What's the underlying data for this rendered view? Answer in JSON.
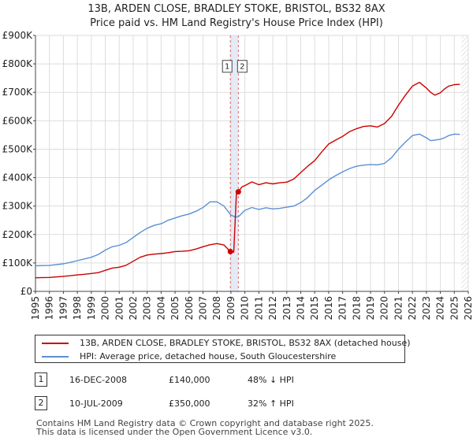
{
  "chart_data": {
    "type": "line",
    "title": "13B, ARDEN CLOSE, BRADLEY STOKE, BRISTOL, BS32 8AX",
    "subtitle": "Price paid vs. HM Land Registry's House Price Index (HPI)",
    "xlabel": "",
    "ylabel": "",
    "xlim": [
      1995,
      2026
    ],
    "ylim": [
      0,
      900000
    ],
    "x_ticks": [
      "1995",
      "1996",
      "1997",
      "1998",
      "1999",
      "2000",
      "2001",
      "2002",
      "2003",
      "2004",
      "2005",
      "2006",
      "2007",
      "2008",
      "2009",
      "2010",
      "2011",
      "2012",
      "2013",
      "2014",
      "2015",
      "2016",
      "2017",
      "2018",
      "2019",
      "2020",
      "2021",
      "2022",
      "2023",
      "2024",
      "2025",
      "2026"
    ],
    "y_ticks": [
      {
        "value": 0,
        "label": "£0"
      },
      {
        "value": 100000,
        "label": "£100K"
      },
      {
        "value": 200000,
        "label": "£200K"
      },
      {
        "value": 300000,
        "label": "£300K"
      },
      {
        "value": 400000,
        "label": "£400K"
      },
      {
        "value": 500000,
        "label": "£500K"
      },
      {
        "value": 600000,
        "label": "£600K"
      },
      {
        "value": 700000,
        "label": "£700K"
      },
      {
        "value": 800000,
        "label": "£800K"
      },
      {
        "value": 900000,
        "label": "£900K"
      }
    ],
    "grid": true,
    "shaded_region": {
      "from": 2008.96,
      "to": 2009.53
    },
    "future_hatch_from": 2025.5,
    "series": [
      {
        "name": "13B, ARDEN CLOSE, BRADLEY STOKE, BRISTOL, BS32 8AX (detached house)",
        "color": "#cc0000",
        "x": [
          1995.0,
          1996.0,
          1997.0,
          1997.5,
          1998.0,
          1998.5,
          1999.0,
          1999.5,
          2000.0,
          2000.5,
          2001.0,
          2001.5,
          2002.0,
          2002.5,
          2003.0,
          2003.5,
          2004.0,
          2004.5,
          2005.0,
          2005.5,
          2006.0,
          2006.5,
          2007.0,
          2007.5,
          2008.0,
          2008.5,
          2008.96,
          2009.2,
          2009.4,
          2009.53,
          2009.8,
          2010.0,
          2010.5,
          2011.0,
          2011.5,
          2012.0,
          2012.5,
          2013.0,
          2013.5,
          2014.0,
          2014.5,
          2015.0,
          2015.5,
          2016.0,
          2016.5,
          2017.0,
          2017.5,
          2018.0,
          2018.5,
          2019.0,
          2019.5,
          2020.0,
          2020.5,
          2021.0,
          2021.5,
          2022.0,
          2022.5,
          2023.0,
          2023.3,
          2023.6,
          2024.0,
          2024.3,
          2024.6,
          2025.0,
          2025.4
        ],
        "values": [
          48000,
          49000,
          53000,
          55000,
          58000,
          60000,
          63000,
          66000,
          74000,
          82000,
          85000,
          92000,
          106000,
          120000,
          128000,
          131000,
          133000,
          136000,
          140000,
          141000,
          143000,
          149000,
          157000,
          164000,
          168000,
          163000,
          140000,
          138000,
          350000,
          350000,
          368000,
          372000,
          385000,
          375000,
          382000,
          378000,
          382000,
          384000,
          395000,
          418000,
          440000,
          460000,
          490000,
          518000,
          532000,
          545000,
          562000,
          572000,
          580000,
          582000,
          578000,
          590000,
          615000,
          655000,
          690000,
          722000,
          735000,
          715000,
          700000,
          690000,
          698000,
          712000,
          722000,
          727000,
          728000
        ]
      },
      {
        "name": "HPI: Average price, detached house, South Gloucestershire",
        "color": "#5b8fd4",
        "x": [
          1995.0,
          1996.0,
          1997.0,
          1997.5,
          1998.0,
          1998.5,
          1999.0,
          1999.5,
          2000.0,
          2000.5,
          2001.0,
          2001.5,
          2002.0,
          2002.5,
          2003.0,
          2003.5,
          2004.0,
          2004.5,
          2005.0,
          2005.5,
          2006.0,
          2006.5,
          2007.0,
          2007.5,
          2008.0,
          2008.5,
          2009.0,
          2009.3,
          2009.53,
          2010.0,
          2010.5,
          2011.0,
          2011.5,
          2012.0,
          2012.5,
          2013.0,
          2013.5,
          2014.0,
          2014.5,
          2015.0,
          2015.5,
          2016.0,
          2016.5,
          2017.0,
          2017.5,
          2018.0,
          2018.5,
          2019.0,
          2019.5,
          2020.0,
          2020.5,
          2021.0,
          2021.5,
          2022.0,
          2022.5,
          2023.0,
          2023.3,
          2023.6,
          2024.0,
          2024.3,
          2024.6,
          2025.0,
          2025.4
        ],
        "values": [
          90000,
          91000,
          97000,
          102000,
          108000,
          114000,
          120000,
          130000,
          145000,
          157000,
          162000,
          172000,
          190000,
          207000,
          222000,
          232000,
          238000,
          250000,
          258000,
          266000,
          272000,
          282000,
          295000,
          315000,
          315000,
          300000,
          268000,
          262000,
          262000,
          285000,
          295000,
          288000,
          294000,
          290000,
          292000,
          296000,
          300000,
          312000,
          330000,
          355000,
          373000,
          392000,
          407000,
          420000,
          432000,
          440000,
          444000,
          446000,
          445000,
          450000,
          470000,
          500000,
          525000,
          548000,
          553000,
          540000,
          530000,
          532000,
          535000,
          540000,
          548000,
          553000,
          552000
        ]
      }
    ],
    "markers": [
      {
        "label": "1",
        "x": 2008.96,
        "value": 140000
      },
      {
        "label": "2",
        "x": 2009.53,
        "value": 350000
      }
    ]
  },
  "legend": [
    {
      "label": "13B, ARDEN CLOSE, BRADLEY STOKE, BRISTOL, BS32 8AX (detached house)",
      "color": "#cc0000"
    },
    {
      "label": "HPI: Average price, detached house, South Gloucestershire",
      "color": "#5b8fd4"
    }
  ],
  "transactions": [
    {
      "num": "1",
      "date": "16-DEC-2008",
      "price": "£140,000",
      "hpi": "48% ↓ HPI"
    },
    {
      "num": "2",
      "date": "10-JUL-2009",
      "price": "£350,000",
      "hpi": "32% ↑ HPI"
    }
  ],
  "footer": {
    "line1": "Contains HM Land Registry data © Crown copyright and database right 2025.",
    "line2": "This data is licensed under the Open Government Licence v3.0."
  }
}
